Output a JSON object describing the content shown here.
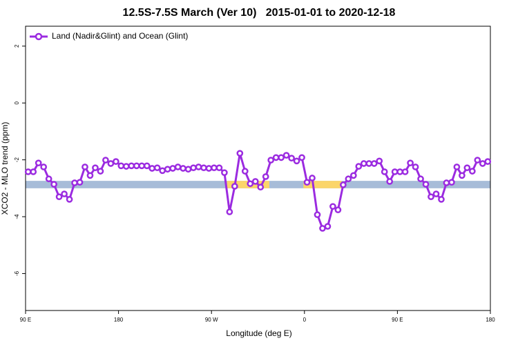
{
  "chart_data": {
    "type": "line",
    "title": "12.5S-7.5S March (Ver 10)   2015-01-01 to 2020-12-18",
    "xlabel": "Longitude (deg E)",
    "ylabel": "XCO2 - MLO trend (ppm)",
    "xlim": [
      90,
      540
    ],
    "ylim": [
      -7.3,
      2.7
    ],
    "xticks": [
      {
        "value": 90,
        "label": "90 E"
      },
      {
        "value": 180,
        "label": "180"
      },
      {
        "value": 270,
        "label": "90 W"
      },
      {
        "value": 360,
        "label": "0"
      },
      {
        "value": 450,
        "label": "90 E"
      },
      {
        "value": 540,
        "label": "180"
      }
    ],
    "yticks": [
      2,
      0,
      -2,
      -4,
      -6
    ],
    "legend": "top-left",
    "band": {
      "range": [
        -3.0,
        -2.74
      ],
      "color": "#a7bcd8",
      "highlight_color": "#fbd56a",
      "highlights": [
        [
          285,
          326
        ],
        [
          359,
          396
        ]
      ]
    },
    "x": [
      92.5,
      97.5,
      102.5,
      107.5,
      112.5,
      117.5,
      122.5,
      127.5,
      132.5,
      137.5,
      142.5,
      147.5,
      152.5,
      157.5,
      162.5,
      167.5,
      172.5,
      177.5,
      182.5,
      187.5,
      192.5,
      197.5,
      202.5,
      207.5,
      212.5,
      217.5,
      222.5,
      227.5,
      232.5,
      237.5,
      242.5,
      247.5,
      252.5,
      257.5,
      262.5,
      267.5,
      272.5,
      277.5,
      282.5,
      287.5,
      292.5,
      297.5,
      302.5,
      307.5,
      312.5,
      317.5,
      322.5,
      327.5,
      332.5,
      337.5,
      342.5,
      347.5,
      352.5,
      357.5,
      362.5,
      367.5,
      372.5,
      377.5,
      382.5,
      387.5,
      392.5,
      397.5,
      402.5,
      407.5,
      412.5,
      417.5,
      422.5,
      427.5,
      432.5,
      437.5,
      442.5,
      447.5,
      452.5,
      457.5,
      462.5,
      467.5,
      472.5,
      477.5,
      482.5,
      487.5,
      492.5,
      497.5,
      502.5,
      507.5,
      512.5,
      517.5,
      522.5,
      527.5,
      532.5,
      537.5
    ],
    "series": [
      {
        "name": "Land (Nadir&Glint) and Ocean (Glint)",
        "color": "#9b2be0",
        "values": [
          -2.42,
          -2.42,
          -2.11,
          -2.25,
          -2.67,
          -2.86,
          -3.3,
          -3.2,
          -3.39,
          -2.81,
          -2.79,
          -2.25,
          -2.55,
          -2.28,
          -2.4,
          -2.01,
          -2.13,
          -2.06,
          -2.21,
          -2.23,
          -2.21,
          -2.21,
          -2.21,
          -2.21,
          -2.3,
          -2.28,
          -2.38,
          -2.33,
          -2.3,
          -2.25,
          -2.3,
          -2.33,
          -2.28,
          -2.25,
          -2.28,
          -2.3,
          -2.28,
          -2.28,
          -2.45,
          -3.83,
          -2.93,
          -1.77,
          -2.4,
          -2.84,
          -2.76,
          -2.96,
          -2.59,
          -2.01,
          -1.92,
          -1.92,
          -1.84,
          -1.94,
          -2.04,
          -1.92,
          -2.79,
          -2.64,
          -3.93,
          -4.41,
          -4.34,
          -3.64,
          -3.76,
          -2.88,
          -2.67,
          -2.55,
          -2.23,
          -2.13,
          -2.13,
          -2.13,
          -2.04,
          -2.42,
          -2.76,
          -2.42,
          -2.42,
          -2.42,
          -2.11,
          -2.25,
          -2.67,
          -2.86,
          -3.3,
          -3.2,
          -3.39,
          -2.81,
          -2.79,
          -2.25,
          -2.55,
          -2.28,
          -2.4,
          -2.01,
          -2.13,
          -2.06
        ]
      }
    ]
  }
}
